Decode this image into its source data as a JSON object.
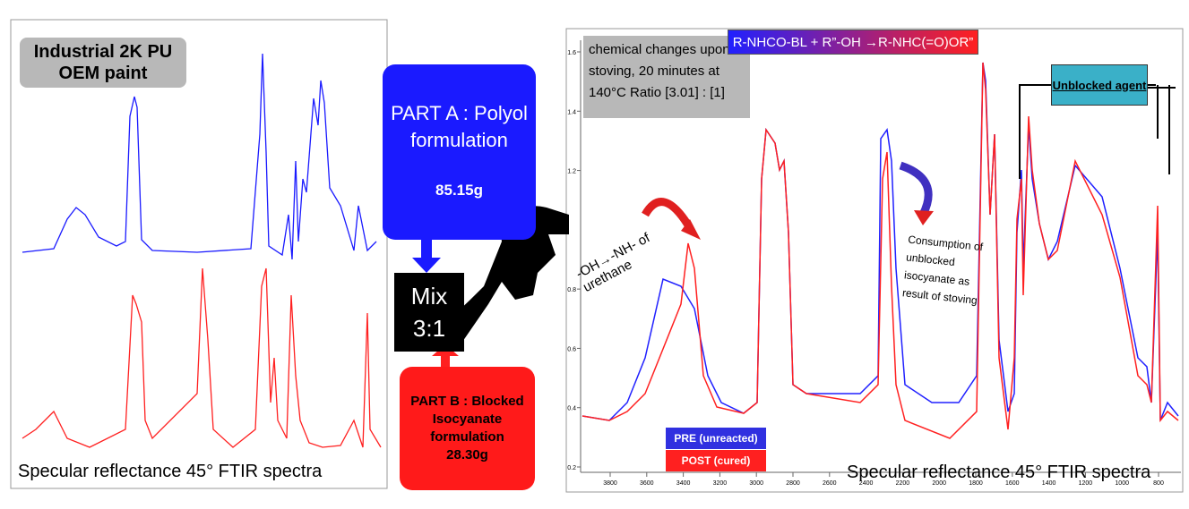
{
  "left_panel": {
    "label": "Industrial 2K PU OEM paint",
    "caption": "Specular reflectance 45° FTIR spectra"
  },
  "part_a": {
    "title": "PART A : Polyol formulation",
    "mass": "85.15g"
  },
  "mix": {
    "label": "Mix 3:1"
  },
  "part_b": {
    "title": "PART B : Blocked Isocyanate formulation",
    "mass": "28.30g"
  },
  "right_panel": {
    "conditions": "chemical changes upon stoving, 20 minutes at 140°C  Ratio [3.01] : [1]",
    "reaction": "R-NHCO-BL + R”-OH →R-NHC(=O)OR”",
    "unblocked": "Unblocked agent",
    "urethane": "-OH→-NH- of urethane",
    "consumption": "Consumption of unblocked isocyanate as result of stoving",
    "legend": [
      "PRE (unreacted)",
      "POST (cured)"
    ],
    "caption": "Specular reflectance 45° FTIR spectra",
    "yticks": [
      0.2,
      0.4,
      0.6,
      0.8,
      1.2,
      1.4,
      1.6
    ],
    "xticks": [
      3800,
      3600,
      3400,
      3200,
      3000,
      2800,
      2600,
      2400,
      2200,
      2000,
      1800,
      1600,
      1400,
      1200,
      1000,
      800
    ]
  }
}
